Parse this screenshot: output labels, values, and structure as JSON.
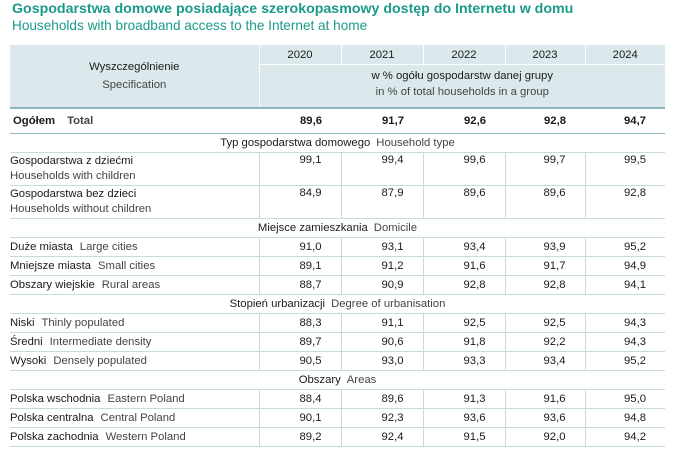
{
  "title_pl": "Gospodarstwa domowe posiadające szerokopasmowy dostęp do Internetu w domu",
  "title_en": "Households with broadband access to the Internet at home",
  "header": {
    "spec_pl": "Wyszczególnienie",
    "spec_en": "Specification",
    "years": [
      "2020",
      "2021",
      "2022",
      "2023",
      "2024"
    ],
    "unit_pl": "w % ogółu gospodarstw danej grupy",
    "unit_en": "in % of total households in a group"
  },
  "total": {
    "pl": "Ogółem",
    "en": "Total",
    "values": [
      "89,6",
      "91,7",
      "92,6",
      "92,8",
      "94,7"
    ]
  },
  "sections": [
    {
      "pl": "Typ gospodarstwa domowego",
      "en": "Household type",
      "rows": [
        {
          "pl": "Gospodarstwa z dziećmi",
          "en": "Households with children",
          "values": [
            "99,1",
            "99,4",
            "99,6",
            "99,7",
            "99,5"
          ]
        },
        {
          "pl": "Gospodarstwa bez dzieci",
          "en": "Households without children",
          "values": [
            "84,9",
            "87,9",
            "89,6",
            "89,6",
            "92,8"
          ]
        }
      ]
    },
    {
      "pl": "Miejsce zamieszkania",
      "en": "Domicile",
      "rows": [
        {
          "pl": "Duże miasta",
          "en": "Large cities",
          "values": [
            "91,0",
            "93,1",
            "93,4",
            "93,9",
            "95,2"
          ]
        },
        {
          "pl": "Mniejsze miasta",
          "en": "Small cities",
          "values": [
            "89,1",
            "91,2",
            "91,6",
            "91,7",
            "94,9"
          ]
        },
        {
          "pl": "Obszary wiejskie",
          "en": "Rural areas",
          "values": [
            "88,7",
            "90,9",
            "92,8",
            "92,8",
            "94,1"
          ]
        }
      ]
    },
    {
      "pl": "Stopień urbanizacji",
      "en": "Degree of urbanisation",
      "rows": [
        {
          "pl": "Niski",
          "en": "Thinly populated",
          "values": [
            "88,3",
            "91,1",
            "92,5",
            "92,5",
            "94,3"
          ]
        },
        {
          "pl": "Średni",
          "en": "Intermediate density",
          "values": [
            "89,7",
            "90,6",
            "91,8",
            "92,2",
            "94,3"
          ]
        },
        {
          "pl": "Wysoki",
          "en": "Densely populated",
          "values": [
            "90,5",
            "93,0",
            "93,3",
            "93,4",
            "95,2"
          ]
        }
      ]
    },
    {
      "pl": "Obszary",
      "en": "Areas",
      "rows": [
        {
          "pl": "Polska wschodnia",
          "en": "Eastern Poland",
          "values": [
            "88,4",
            "89,6",
            "91,3",
            "91,6",
            "95,0"
          ]
        },
        {
          "pl": "Polska centralna",
          "en": "Central Poland",
          "values": [
            "90,1",
            "92,3",
            "93,6",
            "93,6",
            "94,8"
          ]
        },
        {
          "pl": "Polska zachodnia",
          "en": "Western Poland",
          "values": [
            "89,2",
            "92,4",
            "91,5",
            "92,0",
            "94,2"
          ]
        }
      ]
    }
  ],
  "colors": {
    "accent": "#1a9a8a",
    "header_bg": "#dbe9ec",
    "rule": "#8fb6bd"
  }
}
